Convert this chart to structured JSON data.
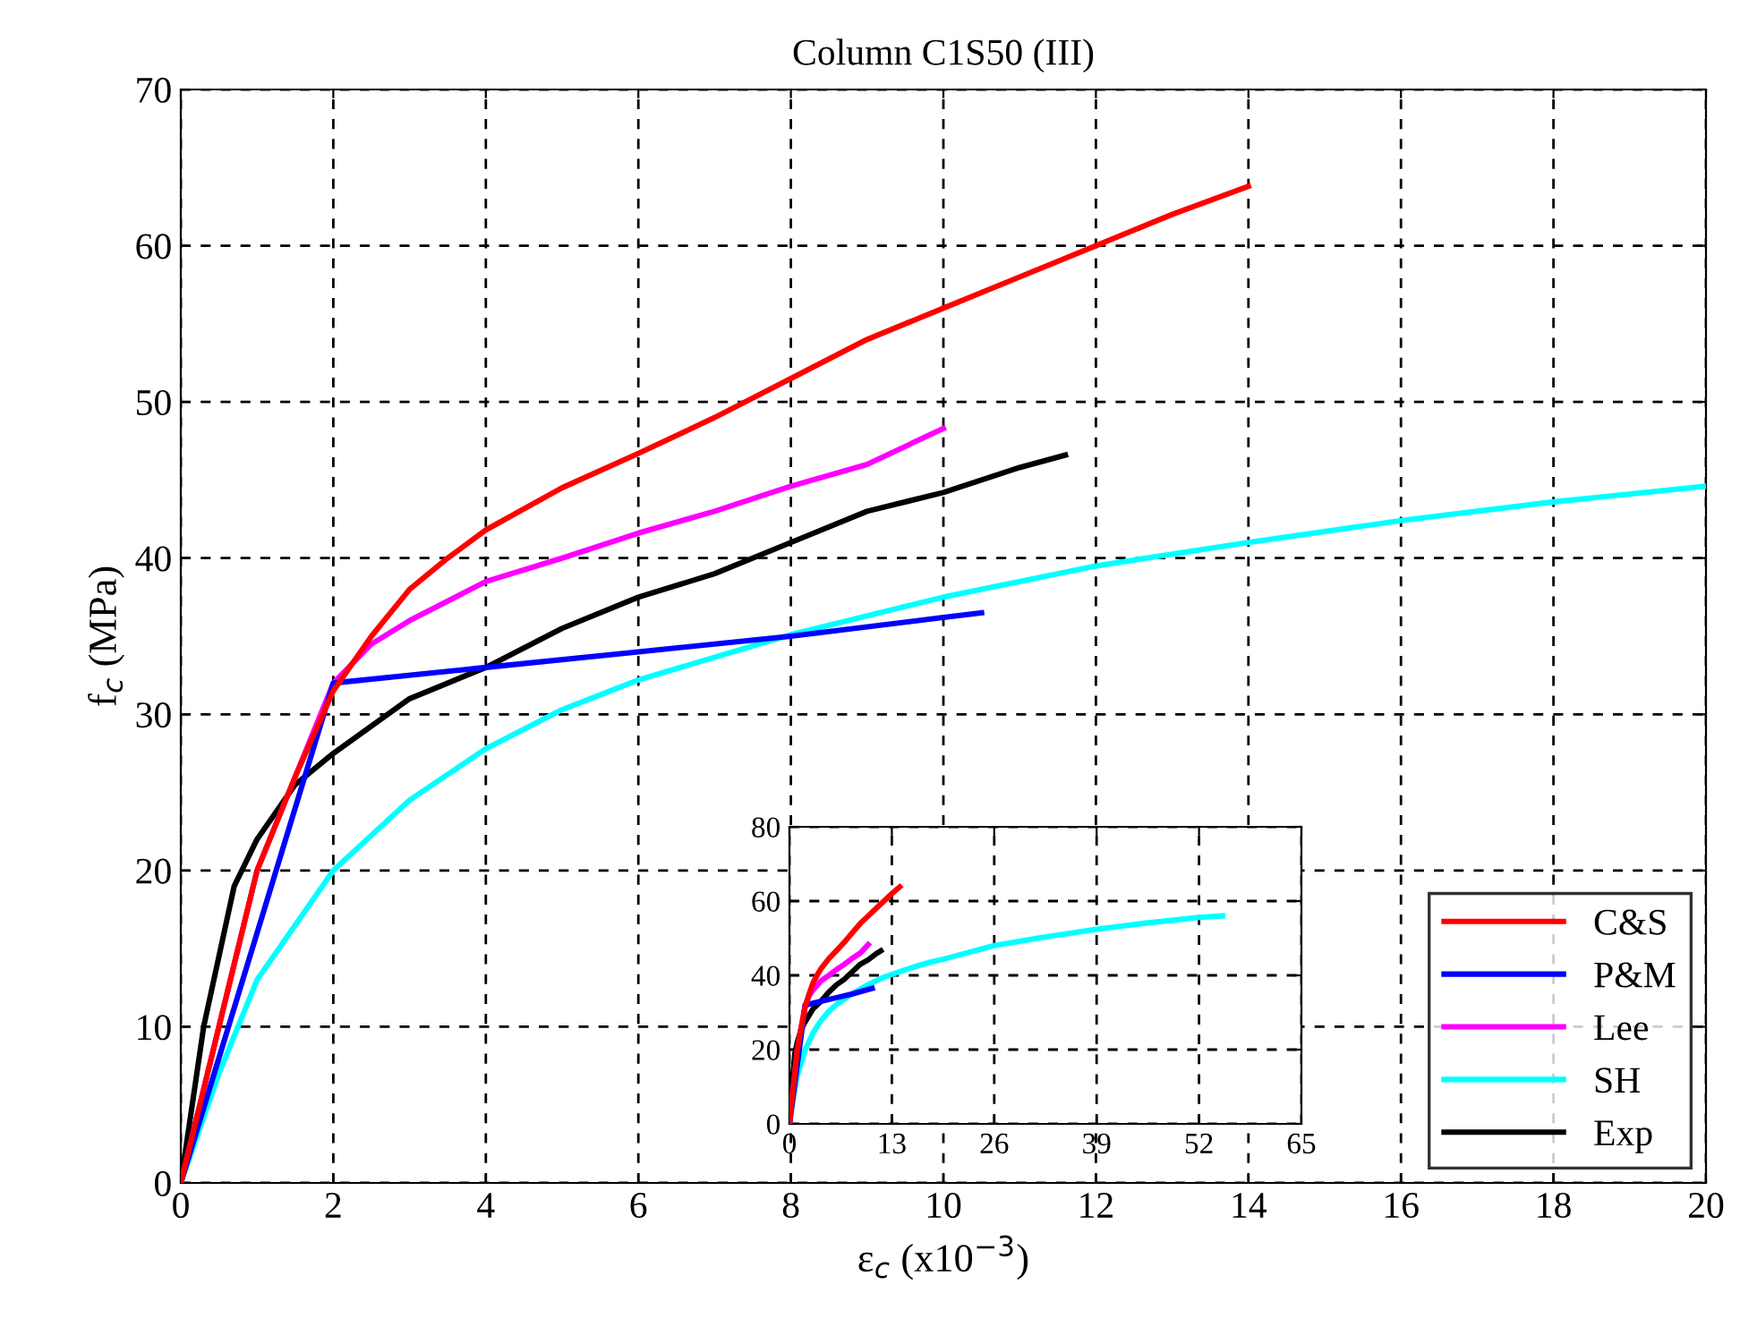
{
  "chart_data": [
    {
      "type": "line",
      "title": "Column C1S50 (III)",
      "xlabel": "ε$_{c}$ (x10$^{−3}$)",
      "ylabel": "f$_{c}$ (MPa)",
      "xlim": [
        0,
        20
      ],
      "ylim": [
        0,
        70
      ],
      "xticks": [
        0,
        2,
        4,
        6,
        8,
        10,
        12,
        14,
        16,
        18,
        20
      ],
      "yticks": [
        0,
        10,
        20,
        30,
        40,
        50,
        60,
        70
      ],
      "grid": true,
      "legend": "bottom right",
      "line_style": "solid",
      "series": [
        {
          "name": "C&S",
          "color": "#ff0000",
          "x": [
            0,
            0.5,
            1,
            1.5,
            2,
            2.5,
            3,
            3.5,
            4,
            5,
            6,
            7,
            8,
            9,
            10,
            11,
            12,
            13,
            14
          ],
          "values": [
            0,
            10,
            20,
            26,
            31.5,
            35,
            38,
            40,
            41.8,
            44.5,
            46.7,
            49,
            51.5,
            54,
            56,
            58,
            60,
            62,
            63.8
          ]
        },
        {
          "name": "P&M",
          "color": "#0000ff",
          "x": [
            0,
            2,
            4,
            6,
            8,
            10,
            10.5
          ],
          "values": [
            0,
            32,
            33,
            34,
            35,
            36.2,
            36.5
          ]
        },
        {
          "name": "Lee",
          "color": "#ff00ff",
          "x": [
            0,
            1,
            2,
            2.5,
            3,
            4,
            5,
            6,
            7,
            8,
            9,
            10
          ],
          "values": [
            0,
            20,
            32,
            34.5,
            36,
            38.5,
            40,
            41.6,
            43,
            44.6,
            46,
            48.3
          ]
        },
        {
          "name": "SH",
          "color": "#00ffff",
          "x": [
            0,
            0.5,
            1,
            2,
            3,
            4,
            5,
            6,
            8,
            10,
            12,
            14,
            16,
            18,
            20
          ],
          "values": [
            0,
            7,
            13,
            20,
            24.5,
            27.8,
            30.3,
            32.2,
            35.1,
            37.5,
            39.5,
            41,
            42.4,
            43.6,
            44.6
          ]
        },
        {
          "name": "Exp",
          "color": "#000000",
          "x": [
            0,
            0.3,
            0.7,
            1,
            1.5,
            2,
            3,
            4,
            5,
            6,
            7,
            8,
            9,
            10,
            11,
            11.6
          ],
          "values": [
            0,
            10,
            19,
            22,
            25.5,
            27.5,
            31,
            33,
            35.5,
            37.5,
            39,
            41,
            43,
            44.2,
            45.8,
            46.6
          ]
        }
      ]
    },
    {
      "type": "line",
      "xlim": [
        0,
        65
      ],
      "ylim": [
        0,
        80
      ],
      "xticks": [
        0,
        13,
        26,
        39,
        52,
        65
      ],
      "yticks": [
        0,
        20,
        40,
        60,
        80
      ],
      "grid": true,
      "line_style": "solid",
      "series": [
        {
          "color": "#ff0000",
          "x": [
            0,
            0.5,
            1,
            1.5,
            2,
            2.5,
            3,
            3.5,
            4,
            5,
            6,
            7,
            8,
            9,
            10,
            11,
            12,
            13,
            14
          ],
          "values": [
            0,
            10,
            20,
            26,
            31.5,
            35,
            38,
            40,
            41.8,
            44.5,
            46.7,
            49,
            51.5,
            54,
            56,
            58,
            60,
            62,
            63.8
          ]
        },
        {
          "color": "#0000ff",
          "x": [
            0,
            2,
            4,
            6,
            8,
            10,
            10.5
          ],
          "values": [
            0,
            32,
            33,
            34,
            35,
            36.2,
            36.5
          ]
        },
        {
          "color": "#ff00ff",
          "x": [
            0,
            1,
            2,
            2.5,
            3,
            4,
            5,
            6,
            7,
            8,
            9,
            10
          ],
          "values": [
            0,
            20,
            32,
            34.5,
            36,
            38.5,
            40,
            41.6,
            43,
            44.6,
            46,
            48.3
          ]
        },
        {
          "color": "#00ffff",
          "x": [
            0,
            0.5,
            1,
            2,
            3,
            4,
            5,
            6,
            8,
            10,
            12,
            14,
            16,
            18,
            20,
            26,
            32,
            39,
            45,
            52,
            55
          ],
          "values": [
            0,
            7,
            13,
            20,
            24.5,
            27.8,
            30.3,
            32.2,
            35.1,
            37.5,
            39.5,
            41,
            42.4,
            43.6,
            44.6,
            48,
            50.2,
            52.4,
            54,
            55.6,
            56
          ]
        },
        {
          "color": "#000000",
          "x": [
            0,
            0.3,
            0.7,
            1,
            1.5,
            2,
            3,
            4,
            5,
            6,
            7,
            8,
            9,
            10,
            11,
            11.6
          ],
          "values": [
            0,
            10,
            19,
            22,
            25.5,
            27.5,
            31,
            33,
            35.5,
            37.5,
            39,
            41,
            43,
            44.2,
            45.8,
            46.6
          ]
        }
      ]
    }
  ]
}
